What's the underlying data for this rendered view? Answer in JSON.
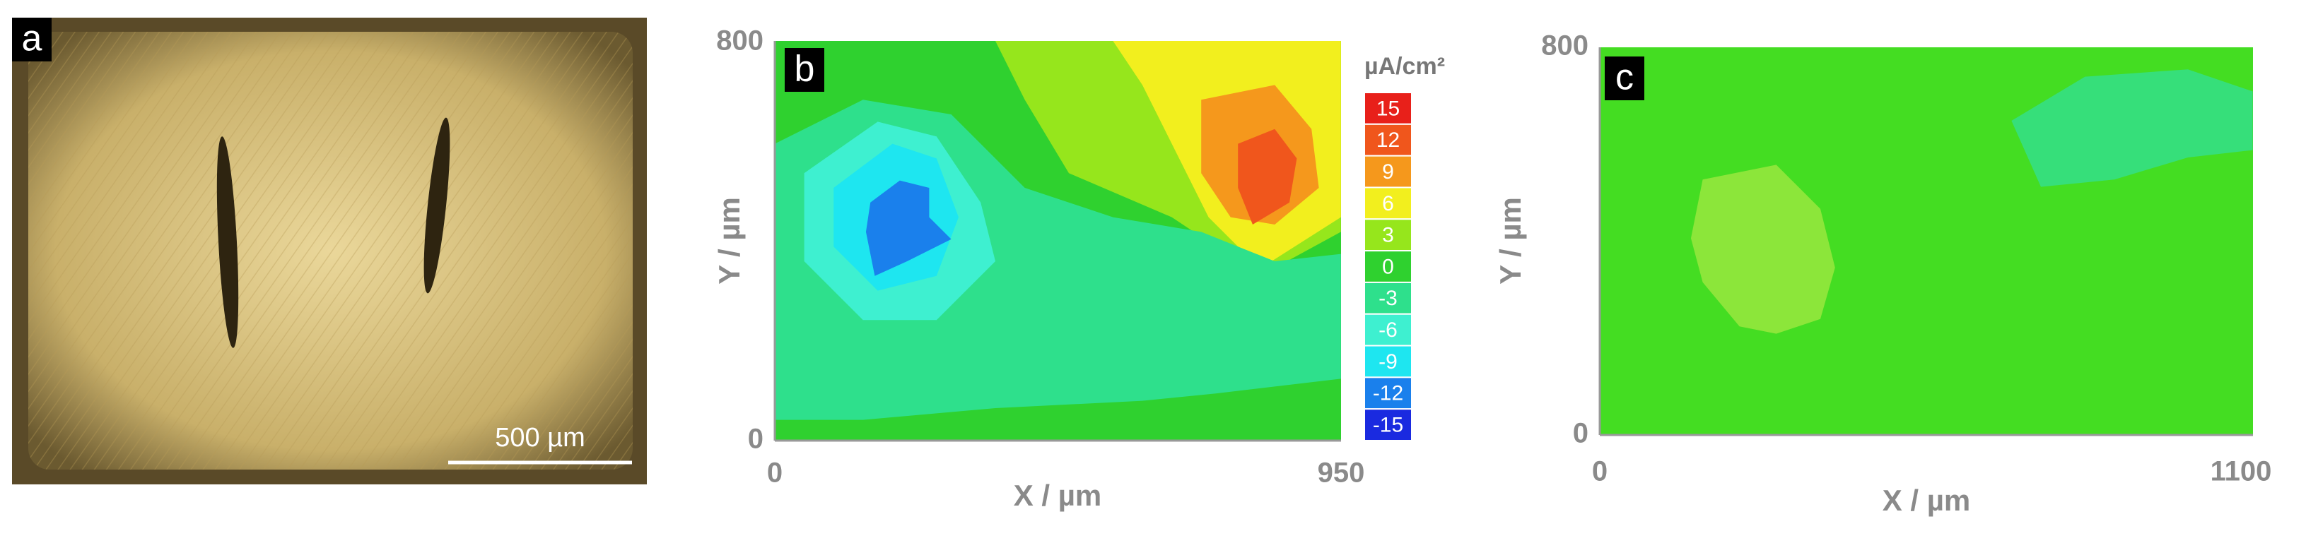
{
  "panels": [
    {
      "label": "a",
      "scale_bar": "500 µm"
    },
    {
      "label": "b",
      "x_axis": {
        "label": "X / µm",
        "ticks": [
          "0",
          "950"
        ]
      },
      "y_axis": {
        "label": "Y / µm",
        "ticks": [
          "0",
          "800"
        ]
      },
      "colorbar": {
        "unit": "µA/cm²",
        "levels": [
          "15",
          "12",
          "9",
          "6",
          "3",
          "0",
          "-3",
          "-6",
          "-9",
          "-12",
          "-15"
        ],
        "colors": [
          "#e8201a",
          "#f0561c",
          "#f5981c",
          "#f2ef1e",
          "#96e61c",
          "#2fd12f",
          "#2ee08c",
          "#3ef0d0",
          "#1ee6f0",
          "#1a80ec",
          "#1a2ae0"
        ]
      }
    },
    {
      "label": "c",
      "x_axis": {
        "label": "X / µm",
        "ticks": [
          "0",
          "1100"
        ]
      },
      "y_axis": {
        "label": "Y / µm",
        "ticks": [
          "0",
          "800"
        ]
      }
    }
  ]
}
